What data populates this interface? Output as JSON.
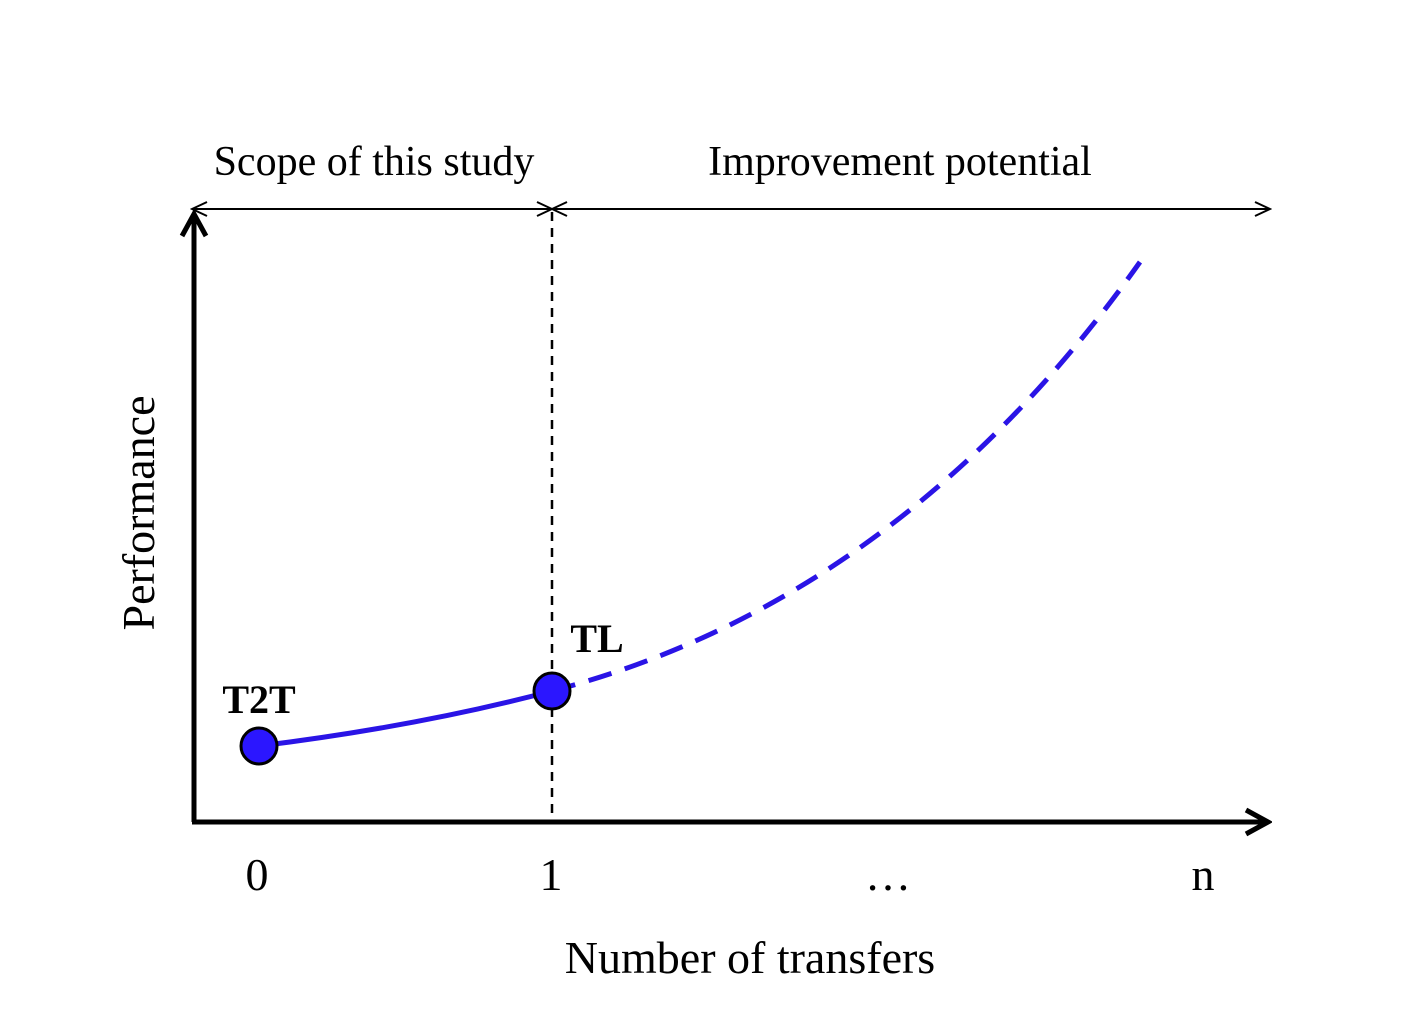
{
  "diagram": {
    "regions": {
      "scope_label": "Scope of this study",
      "improvement_label": "Improvement potential"
    },
    "axes": {
      "x_label": "Number of transfers",
      "y_label": "Performance",
      "ticks": [
        "0",
        "1",
        "…",
        "n"
      ]
    },
    "points": [
      {
        "label": "T2T"
      },
      {
        "label": "TL"
      }
    ]
  },
  "colors": {
    "axis": "#000000",
    "curve": "#2a14e6",
    "point_fill": "#2b16ff",
    "point_stroke": "#000000",
    "divider": "#000000"
  }
}
